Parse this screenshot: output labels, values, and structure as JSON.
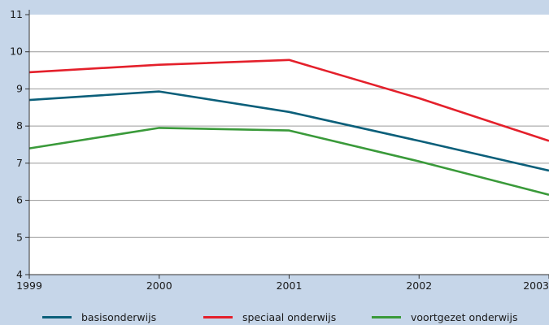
{
  "chart_data": {
    "type": "line",
    "x": [
      "1999",
      "2000",
      "2001",
      "2002",
      "2003"
    ],
    "ylim": [
      4,
      11
    ],
    "yticks": [
      "4",
      "5",
      "6",
      "7",
      "8",
      "9",
      "10",
      "11"
    ],
    "grid": true,
    "legend_position": "bottom",
    "series": [
      {
        "name": "basisonderwijs",
        "color": "#0b5f7a",
        "values": [
          8.7,
          8.93,
          8.38,
          7.6,
          6.8
        ]
      },
      {
        "name": "speciaal onderwijs",
        "color": "#e4202b",
        "values": [
          9.45,
          9.65,
          9.78,
          8.75,
          7.6
        ]
      },
      {
        "name": "voortgezet onderwijs",
        "color": "#3a9a3a",
        "values": [
          7.4,
          7.95,
          7.88,
          7.05,
          6.15
        ]
      }
    ]
  }
}
